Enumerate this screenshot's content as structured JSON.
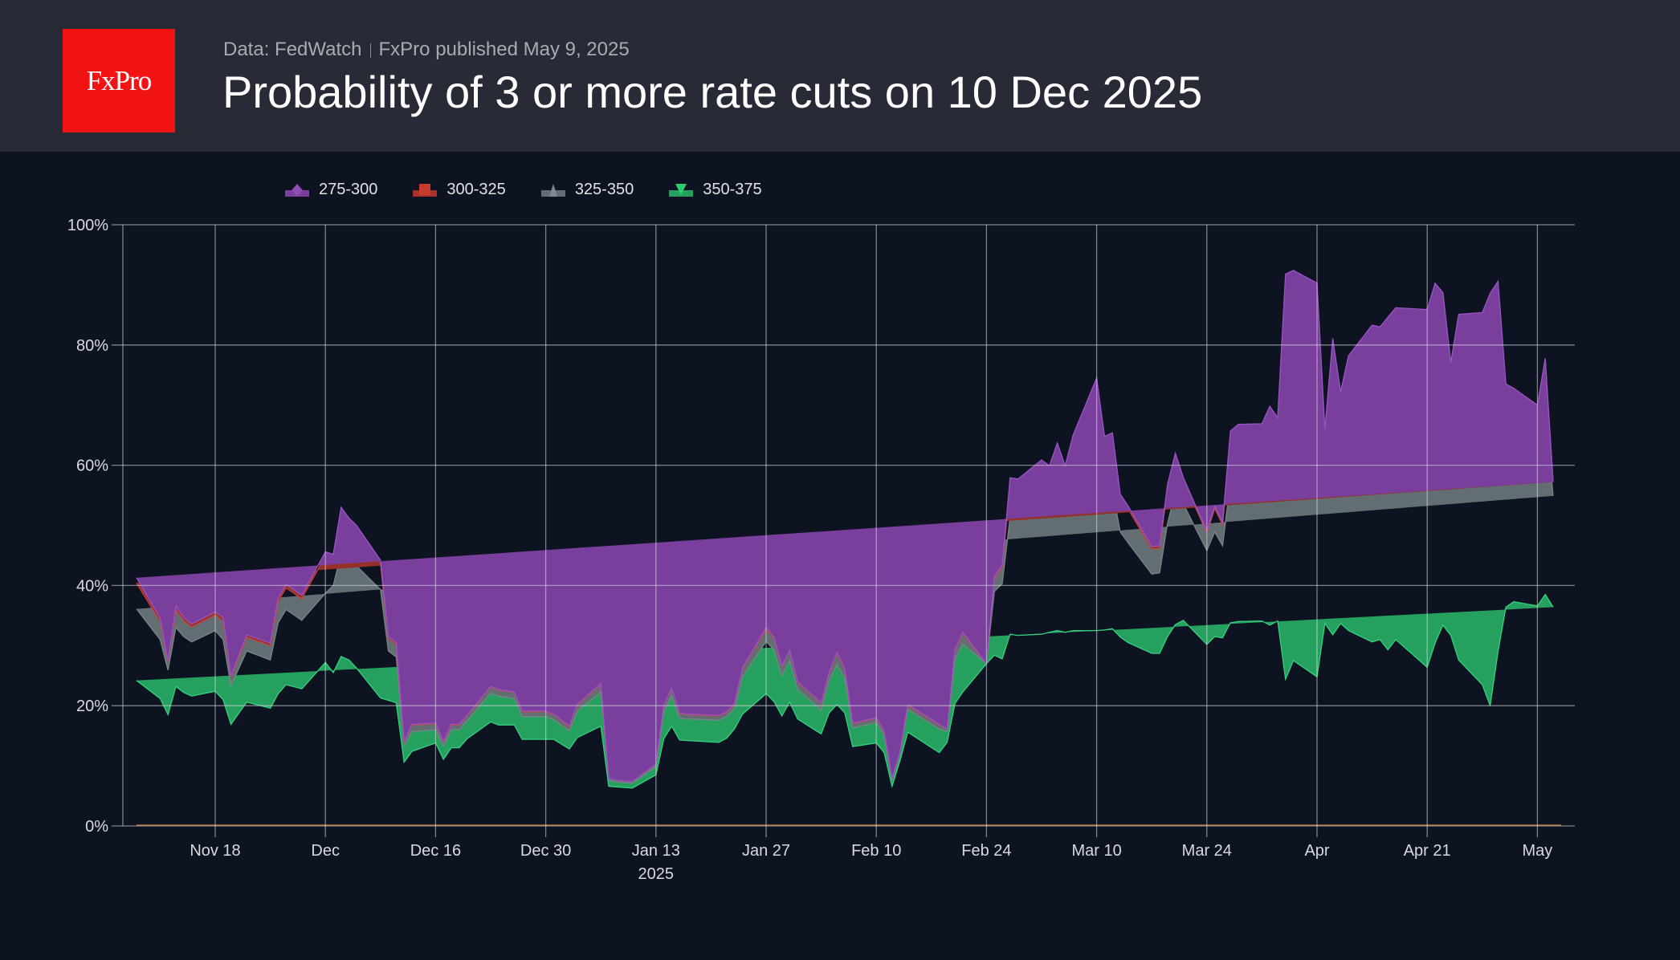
{
  "header": {
    "logo_text": "FxPro",
    "source": "Data: FedWatch",
    "publisher": "FxPro published May 9, 2025",
    "title": "Probability of 3 or more rate cuts on 10 Dec 2025"
  },
  "colors": {
    "header_bg": "#282b36",
    "page_bg": "#0d1320",
    "logo_bg": "#f21414",
    "s275_300": "#7a3e9d",
    "s300_325": "#94312b",
    "s325_350": "#636e72",
    "s350_375": "#26a05f",
    "tip": "#1f9e86"
  },
  "chart_data": {
    "type": "area",
    "stacked": true,
    "title": "Probability of 3 or more rate cuts on 10 Dec 2025",
    "xlabel": "",
    "ylabel": "",
    "ylim": [
      0,
      100
    ],
    "yticks": [
      "0%",
      "20%",
      "40%",
      "60%",
      "80%",
      "100%"
    ],
    "ytick_values": [
      0,
      20,
      40,
      60,
      80,
      100
    ],
    "xticks": [
      {
        "label": "Nov 18",
        "date": "2024-11-18"
      },
      {
        "label": "Dec",
        "date": "2024-12-02"
      },
      {
        "label": "Dec 16",
        "date": "2024-12-16"
      },
      {
        "label": "Dec 30",
        "date": "2024-12-30"
      },
      {
        "label": "Jan 13",
        "sublabel": "2025",
        "date": "2025-01-13"
      },
      {
        "label": "Jan 27",
        "date": "2025-01-27"
      },
      {
        "label": "Feb 10",
        "date": "2025-02-10"
      },
      {
        "label": "Feb 24",
        "date": "2025-02-24"
      },
      {
        "label": "Mar 10",
        "date": "2025-03-10"
      },
      {
        "label": "Mar 24",
        "date": "2025-03-24"
      },
      {
        "label": "Apr",
        "date": "2025-04-07"
      },
      {
        "label": "Apr 21",
        "date": "2025-04-21"
      },
      {
        "label": "May",
        "date": "2025-05-05"
      }
    ],
    "grid": true,
    "legend_position": "top-left",
    "legend": [
      "275-300",
      "300-325",
      "325-350",
      "350-375"
    ],
    "x": [
      "2024-11-08",
      "2024-11-11",
      "2024-11-12",
      "2024-11-13",
      "2024-11-14",
      "2024-11-15",
      "2024-11-18",
      "2024-11-19",
      "2024-11-20",
      "2024-11-22",
      "2024-11-25",
      "2024-11-26",
      "2024-11-27",
      "2024-11-29",
      "2024-12-02",
      "2024-12-03",
      "2024-12-04",
      "2024-12-05",
      "2024-12-06",
      "2024-12-09",
      "2024-12-10",
      "2024-12-11",
      "2024-12-12",
      "2024-12-13",
      "2024-12-16",
      "2024-12-17",
      "2024-12-18",
      "2024-12-19",
      "2024-12-20",
      "2024-12-23",
      "2024-12-24",
      "2024-12-26",
      "2024-12-27",
      "2024-12-30",
      "2024-12-31",
      "2025-01-02",
      "2025-01-03",
      "2025-01-06",
      "2025-01-07",
      "2025-01-08",
      "2025-01-10",
      "2025-01-13",
      "2025-01-14",
      "2025-01-15",
      "2025-01-16",
      "2025-01-17",
      "2025-01-21",
      "2025-01-22",
      "2025-01-23",
      "2025-01-24",
      "2025-01-27",
      "2025-01-28",
      "2025-01-29",
      "2025-01-30",
      "2025-01-31",
      "2025-02-03",
      "2025-02-04",
      "2025-02-05",
      "2025-02-06",
      "2025-02-07",
      "2025-02-10",
      "2025-02-11",
      "2025-02-12",
      "2025-02-13",
      "2025-02-14",
      "2025-02-18",
      "2025-02-19",
      "2025-02-20",
      "2025-02-21",
      "2025-02-24",
      "2025-02-25",
      "2025-02-26",
      "2025-02-27",
      "2025-02-28",
      "2025-03-03",
      "2025-03-04",
      "2025-03-05",
      "2025-03-06",
      "2025-03-07",
      "2025-03-10",
      "2025-03-11",
      "2025-03-12",
      "2025-03-13",
      "2025-03-14",
      "2025-03-17",
      "2025-03-18",
      "2025-03-19",
      "2025-03-20",
      "2025-03-21",
      "2025-03-24",
      "2025-03-25",
      "2025-03-26",
      "2025-03-27",
      "2025-03-28",
      "2025-03-31",
      "2025-04-01",
      "2025-04-02",
      "2025-04-03",
      "2025-04-04",
      "2025-04-07",
      "2025-04-08",
      "2025-04-09",
      "2025-04-10",
      "2025-04-11",
      "2025-04-14",
      "2025-04-15",
      "2025-04-16",
      "2025-04-17",
      "2025-04-21",
      "2025-04-22",
      "2025-04-23",
      "2025-04-24",
      "2025-04-25",
      "2025-04-28",
      "2025-04-29",
      "2025-04-30",
      "2025-05-01",
      "2025-05-02",
      "2025-05-05",
      "2025-05-06",
      "2025-05-07",
      "2025-05-08"
    ],
    "series": [
      {
        "name": "350-375",
        "values": [
          24.2,
          21.2,
          18.5,
          23.2,
          22.2,
          21.6,
          22.4,
          21.0,
          16.9,
          20.6,
          19.6,
          22.0,
          23.5,
          22.8,
          27.2,
          25.5,
          28.2,
          27.6,
          26.2,
          21.3,
          20.9,
          20.5,
          10.6,
          12.4,
          13.8,
          11.1,
          13.0,
          13.0,
          14.5,
          17.3,
          16.8,
          16.8,
          14.4,
          14.4,
          14.4,
          12.8,
          14.7,
          16.6,
          6.6,
          6.5,
          6.3,
          8.5,
          14.5,
          16.6,
          14.3,
          14.2,
          13.9,
          14.6,
          16.2,
          18.6,
          22.0,
          20.7,
          18.3,
          20.6,
          17.8,
          15.3,
          18.8,
          20.2,
          18.8,
          13.2,
          13.8,
          12.2,
          6.6,
          10.8,
          15.6,
          12.2,
          13.9,
          20.4,
          22.3,
          27.0,
          28.4,
          27.8,
          31.9,
          31.7,
          31.9,
          32.2,
          32.5,
          32.2,
          32.5,
          32.5,
          32.6,
          32.8,
          31.4,
          30.5,
          28.7,
          28.7,
          31.5,
          33.5,
          34.2,
          30.2,
          31.5,
          31.3,
          33.8,
          34.0,
          34.1,
          33.4,
          34.1,
          24.4,
          27.5,
          24.8,
          33.7,
          31.8,
          33.7,
          32.5,
          30.6,
          31.0,
          29.3,
          31.0,
          26.4,
          30.4,
          33.4,
          31.7,
          27.6,
          23.5,
          20.0,
          29.0,
          36.4,
          37.3,
          36.6,
          38.5,
          36.4
        ]
      },
      {
        "name": "325-350",
        "values": [
          11.9,
          9.8,
          7.4,
          9.8,
          9.3,
          9.0,
          10.1,
          10.0,
          6.4,
          8.5,
          8.0,
          11.8,
          12.5,
          11.4,
          11.5,
          14.5,
          17.1,
          16.4,
          17.0,
          18.0,
          8.2,
          7.6,
          2.7,
          3.3,
          2.2,
          2.2,
          3.0,
          3.0,
          3.0,
          4.8,
          4.8,
          4.4,
          3.8,
          3.8,
          3.3,
          3.0,
          4.4,
          5.7,
          1.0,
          0.8,
          0.8,
          1.4,
          4.5,
          5.1,
          3.6,
          3.6,
          3.7,
          3.6,
          3.4,
          6.2,
          8.7,
          8.6,
          6.7,
          6.9,
          4.9,
          4.0,
          5.3,
          6.7,
          5.8,
          3.1,
          3.4,
          2.9,
          1.0,
          1.1,
          3.8,
          3.9,
          1.8,
          7.4,
          8.0,
          0.0,
          10.6,
          12.5,
          19.4,
          19.5,
          21.8,
          20.5,
          22.9,
          20.6,
          24.0,
          27.3,
          22.6,
          23.1,
          17.5,
          16.6,
          13.2,
          13.4,
          18.8,
          22.0,
          19.4,
          15.6,
          17.4,
          15.3,
          23.5,
          24.0,
          24.2,
          26.6,
          23.8,
          37.4,
          35.8,
          38.8,
          30.0,
          31.9,
          26.6,
          30.0,
          32.4,
          33.1,
          34.1,
          34.7,
          37.5,
          35.9,
          32.6,
          34.0,
          38.3,
          40.4,
          41.2,
          38.0,
          28.5,
          27.7,
          27.2,
          30.5,
          18.5
        ]
      },
      {
        "name": "300-325",
        "values": [
          4.3,
          3.0,
          1.3,
          3.0,
          2.7,
          2.5,
          2.6,
          3.1,
          1.4,
          2.3,
          2.4,
          3.5,
          3.6,
          3.6,
          6.2,
          4.6,
          6.5,
          6.0,
          5.5,
          4.3,
          2.1,
          2.1,
          0.6,
          1.1,
          1.0,
          0.6,
          0.8,
          0.8,
          0.8,
          1.0,
          1.0,
          1.0,
          0.8,
          0.8,
          0.8,
          0.7,
          1.0,
          1.3,
          0.3,
          0.3,
          0.3,
          0.4,
          1.0,
          1.1,
          0.8,
          0.7,
          0.7,
          0.7,
          0.7,
          1.4,
          2.0,
          1.9,
          1.5,
          1.6,
          1.2,
          1.1,
          1.3,
          1.8,
          1.4,
          0.7,
          0.7,
          0.6,
          0.3,
          0.3,
          0.7,
          0.7,
          0.4,
          1.5,
          1.7,
          0.0,
          2.2,
          2.8,
          5.6,
          5.5,
          6.1,
          6.0,
          7.0,
          6.0,
          7.2,
          11.5,
          8.6,
          8.4,
          5.8,
          5.6,
          4.2,
          4.1,
          5.9,
          6.0,
          4.0,
          2.9,
          3.9,
          3.5,
          7.6,
          8.0,
          7.8,
          8.7,
          9.0,
          24.6,
          23.9,
          21.7,
          1.8,
          15.0,
          10.3,
          13.6,
          17.6,
          16.3,
          18.3,
          17.6,
          18.8,
          20.6,
          19.5,
          9.6,
          16.8,
          18.9,
          24.1,
          21.0,
          8.3,
          7.5,
          6.0,
          8.5,
          2.3
        ]
      },
      {
        "name": "275-300",
        "values": [
          0.9,
          0.6,
          0.2,
          0.6,
          0.5,
          0.5,
          0.5,
          0.6,
          0.2,
          0.4,
          0.4,
          0.6,
          0.6,
          0.6,
          0.7,
          0.6,
          1.2,
          1.2,
          1.2,
          0.6,
          0.3,
          0.3,
          0.1,
          0.1,
          0.1,
          0.1,
          0.1,
          0.1,
          0.1,
          0.1,
          0.1,
          0.1,
          0.1,
          0.1,
          0.1,
          0.1,
          0.1,
          0.1,
          0.0,
          0.0,
          0.0,
          0.0,
          0.1,
          0.1,
          0.1,
          0.1,
          0.1,
          0.1,
          0.1,
          0.1,
          0.3,
          0.2,
          0.1,
          0.1,
          0.1,
          0.1,
          0.1,
          0.2,
          0.1,
          0.1,
          0.1,
          0.1,
          0.0,
          0.0,
          0.1,
          0.1,
          0.0,
          0.1,
          0.2,
          0.0,
          0.2,
          0.3,
          1.0,
          1.0,
          1.1,
          1.2,
          1.3,
          1.1,
          1.3,
          3.2,
          1.0,
          1.1,
          0.5,
          0.5,
          0.4,
          0.4,
          0.6,
          0.5,
          0.4,
          0.3,
          0.4,
          0.4,
          0.8,
          0.8,
          0.8,
          1.1,
          1.0,
          5.4,
          5.2,
          5.0,
          0.5,
          2.4,
          1.6,
          2.1,
          2.7,
          2.6,
          2.9,
          2.9,
          3.2,
          3.4,
          3.2,
          1.8,
          2.4,
          2.6,
          3.3,
          2.6,
          0.3,
          0.3,
          0.2,
          0.3,
          0.0
        ]
      }
    ]
  }
}
